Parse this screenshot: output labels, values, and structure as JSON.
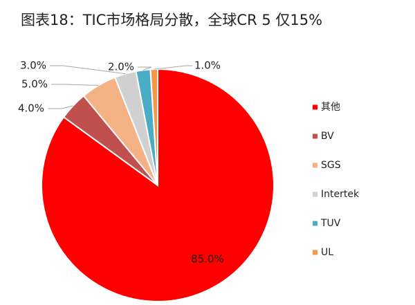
{
  "chart_data": {
    "type": "pie",
    "title": "图表18：TIC市场格局分散，全球CR 5 仅15%",
    "categories": [
      "其他",
      "BV",
      "SGS",
      "Intertek",
      "TUV",
      "UL"
    ],
    "values": [
      85,
      4,
      5,
      3,
      2,
      1
    ],
    "value_labels": [
      "85.0%",
      "4.0%",
      "5.0%",
      "3.0%",
      "2.0%",
      "1.0%"
    ],
    "colors": [
      "#ff0000",
      "#c0504d",
      "#f4b183",
      "#d0d0d0",
      "#4bacc6",
      "#f79646"
    ],
    "legend": "right"
  }
}
